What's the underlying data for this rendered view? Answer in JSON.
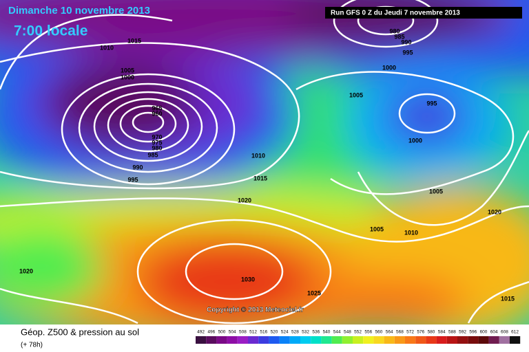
{
  "header": {
    "date": "Dimanche 10 novembre 2013",
    "time": "7:00 locale",
    "run": "Run GFS 0 Z du Jeudi 7 novembre 2013"
  },
  "copyright": "Copyright © 2013 Meteociel.fr",
  "footer": {
    "title": "Géop. Z500 & pression au sol",
    "lead": "(+ 78h)"
  },
  "isobar_labels": [
    1015,
    1010,
    1005,
    1000,
    965,
    960,
    970,
    975,
    980,
    985,
    990,
    995,
    980,
    985,
    990,
    995,
    1000,
    1005,
    995,
    1000,
    1010,
    1015,
    1020,
    1005,
    1020,
    1005,
    1010,
    1020,
    1030,
    1025,
    1015
  ],
  "scale": {
    "labels": [
      492,
      496,
      500,
      504,
      508,
      512,
      516,
      520,
      524,
      528,
      532,
      536,
      540,
      544,
      548,
      552,
      556,
      560,
      564,
      568,
      572,
      576,
      580,
      584,
      588,
      592,
      596,
      600,
      604,
      608,
      612
    ],
    "colors": [
      "#3a1040",
      "#5a0c5e",
      "#7a0a86",
      "#8e0ea6",
      "#9a1ec4",
      "#6a2ad0",
      "#3c3ce0",
      "#1e5af0",
      "#0a82f8",
      "#00aaf8",
      "#00ccf0",
      "#00e0c8",
      "#20e890",
      "#50ec50",
      "#90f030",
      "#c8f020",
      "#f0f020",
      "#f8d820",
      "#f8b818",
      "#f89818",
      "#f87818",
      "#f05818",
      "#e83818",
      "#d81c1c",
      "#b81414",
      "#941010",
      "#780c0c",
      "#5c0a0a",
      "#701c50",
      "#a070a0",
      "#101010"
    ]
  }
}
